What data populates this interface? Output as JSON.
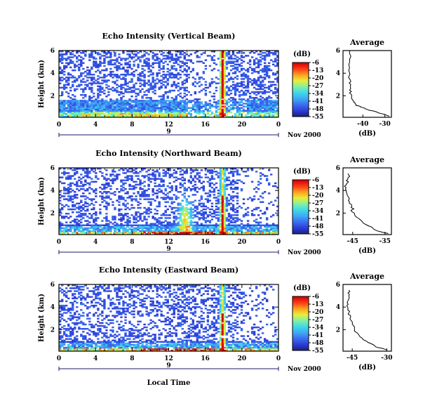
{
  "figure": {
    "bottom_xlabel": "Local Time",
    "date_label": "Nov 2000",
    "colorbar_unit": "(dB)",
    "colorbar_ticks": [
      "-6",
      "-13",
      "-20",
      "-27",
      "-34",
      "-41",
      "-48",
      "-55"
    ],
    "avg_title": "Average",
    "avg_xlabel": "(dB)"
  },
  "colorscale": {
    "min": -55,
    "max": -6,
    "stops": [
      "#1b1f7a",
      "#2d3bd6",
      "#3a6cf0",
      "#3ea8f5",
      "#3fd8e8",
      "#7ff0a8",
      "#e6f03a",
      "#ffa01e",
      "#ff3a16",
      "#d40000"
    ]
  },
  "chart_data": [
    {
      "type": "heatmap",
      "title": "Echo Intensity (Vertical Beam)",
      "ylabel": "Height (km)",
      "x_ticks": [
        "0",
        "4",
        "8",
        "12",
        "16",
        "20",
        "0"
      ],
      "day_label": "9",
      "y_ticks": [
        "6",
        "4",
        "2"
      ],
      "xlim": [
        0,
        24
      ],
      "ylim": [
        0.1,
        6
      ],
      "profile": "vertical",
      "average_profile": {
        "title": "Average",
        "xlabel": "(dB)",
        "x_ticks": [
          "-40",
          "-30"
        ],
        "xlim": [
          -49,
          -27
        ],
        "y_ticks": [
          "6",
          "4",
          "2"
        ],
        "height_km": [
          0.2,
          0.5,
          0.8,
          1.0,
          1.2,
          1.5,
          2.0,
          2.5,
          3.0,
          3.5,
          4.0,
          5.0,
          6.0
        ],
        "value_db": [
          -28,
          -33,
          -38,
          -41,
          -43,
          -44,
          -45,
          -46,
          -45.5,
          -46,
          -46,
          -46,
          -46
        ]
      }
    },
    {
      "type": "heatmap",
      "title": "Echo Intensity (Northward Beam)",
      "ylabel": "Height (km)",
      "x_ticks": [
        "0",
        "4",
        "8",
        "12",
        "16",
        "20",
        "0"
      ],
      "day_label": "9",
      "y_ticks": [
        "6",
        "4",
        "2"
      ],
      "xlim": [
        0,
        24
      ],
      "ylim": [
        0.1,
        6
      ],
      "profile": "northward",
      "average_profile": {
        "title": "Average",
        "xlabel": "(dB)",
        "x_ticks": [
          "-45",
          "-35"
        ],
        "xlim": [
          -48,
          -33
        ],
        "y_ticks": [
          "6",
          "4",
          "2"
        ],
        "height_km": [
          0.2,
          0.5,
          1.0,
          1.5,
          2.0,
          2.5,
          3.0,
          3.5,
          4.0,
          4.5,
          5.0,
          5.5
        ],
        "value_db": [
          -34,
          -38,
          -41,
          -43,
          -44.5,
          -45.5,
          -46,
          -46.5,
          -47,
          -47,
          -46.5,
          -46.5
        ]
      }
    },
    {
      "type": "heatmap",
      "title": "Echo Intensity (Eastward Beam)",
      "ylabel": "Height (km)",
      "x_ticks": [
        "0",
        "4",
        "8",
        "12",
        "16",
        "20",
        "0"
      ],
      "day_label": "9",
      "y_ticks": [
        "6",
        "4",
        "2"
      ],
      "xlim": [
        0,
        24
      ],
      "ylim": [
        0.1,
        6
      ],
      "profile": "eastward",
      "average_profile": {
        "title": "Average",
        "xlabel": "(dB)",
        "x_ticks": [
          "-45",
          "-30"
        ],
        "xlim": [
          -49,
          -28
        ],
        "y_ticks": [
          "6",
          "4",
          "2"
        ],
        "height_km": [
          0.2,
          0.5,
          1.0,
          1.5,
          2.0,
          2.5,
          3.0,
          3.5,
          4.0,
          4.5,
          5.0,
          5.5
        ],
        "value_db": [
          -30,
          -35,
          -39,
          -42,
          -44,
          -45,
          -46,
          -46.5,
          -47,
          -47,
          -46.5,
          -46.5
        ]
      }
    }
  ]
}
